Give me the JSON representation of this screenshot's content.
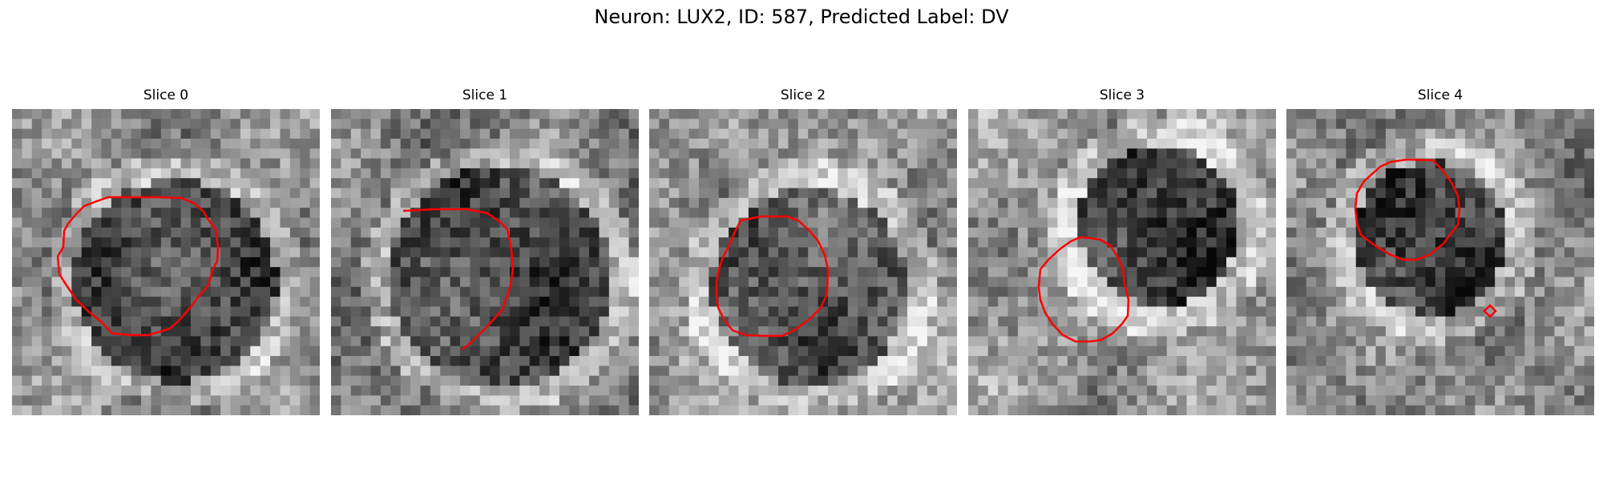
{
  "figure": {
    "title": "Neuron: LUX2, ID: 587, Predicted Label: DV"
  },
  "panels": [
    {
      "title": "Slice 0"
    },
    {
      "title": "Slice 1"
    },
    {
      "title": "Slice 2"
    },
    {
      "title": "Slice 3"
    },
    {
      "title": "Slice 4"
    }
  ],
  "colors": {
    "contour": "#ff0000",
    "background": "#ffffff"
  }
}
